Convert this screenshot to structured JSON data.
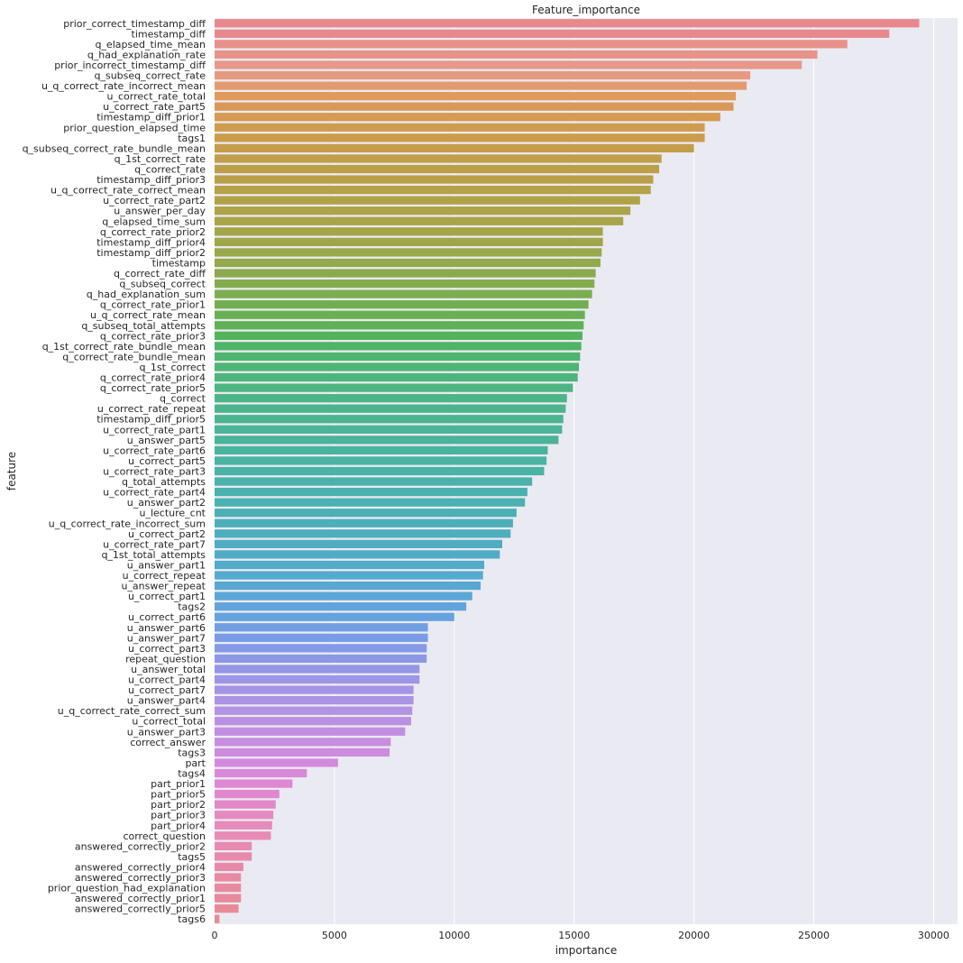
{
  "chart_data": {
    "type": "bar",
    "orientation": "horizontal",
    "title": "Feature_importance",
    "xlabel": "importance",
    "ylabel": "feature",
    "xlim": [
      0,
      31000
    ],
    "xticks": [
      0,
      5000,
      10000,
      15000,
      20000,
      25000,
      30000
    ],
    "grid": true,
    "background": "#eaeaf2",
    "categories": [
      "prior_correct_timestamp_diff",
      "timestamp_diff",
      "q_elapsed_time_mean",
      "q_had_explanation_rate",
      "prior_incorrect_timestamp_diff",
      "q_subseq_correct_rate",
      "u_q_correct_rate_incorrect_mean",
      "u_correct_rate_total",
      "u_correct_rate_part5",
      "timestamp_diff_prior1",
      "prior_question_elapsed_time",
      "tags1",
      "q_subseq_correct_rate_bundle_mean",
      "q_1st_correct_rate",
      "q_correct_rate",
      "timestamp_diff_prior3",
      "u_q_correct_rate_correct_mean",
      "u_correct_rate_part2",
      "u_answer_per_day",
      "q_elapsed_time_sum",
      "q_correct_rate_prior2",
      "timestamp_diff_prior4",
      "timestamp_diff_prior2",
      "timestamp",
      "q_correct_rate_diff",
      "q_subseq_correct",
      "q_had_explanation_sum",
      "q_correct_rate_prior1",
      "u_q_correct_rate_mean",
      "q_subseq_total_attempts",
      "q_correct_rate_prior3",
      "q_1st_correct_rate_bundle_mean",
      "q_correct_rate_bundle_mean",
      "q_1st_correct",
      "q_correct_rate_prior4",
      "q_correct_rate_prior5",
      "q_correct",
      "u_correct_rate_repeat",
      "timestamp_diff_prior5",
      "u_correct_rate_part1",
      "u_answer_part5",
      "u_correct_rate_part6",
      "u_correct_part5",
      "u_correct_rate_part3",
      "q_total_attempts",
      "u_correct_rate_part4",
      "u_answer_part2",
      "u_lecture_cnt",
      "u_q_correct_rate_incorrect_sum",
      "u_correct_part2",
      "u_correct_rate_part7",
      "q_1st_total_attempts",
      "u_answer_part1",
      "u_correct_repeat",
      "u_answer_repeat",
      "u_correct_part1",
      "tags2",
      "u_correct_part6",
      "u_answer_part6",
      "u_answer_part7",
      "u_correct_part3",
      "repeat_question",
      "u_answer_total",
      "u_correct_part4",
      "u_correct_part7",
      "u_answer_part4",
      "u_q_correct_rate_correct_sum",
      "u_correct_total",
      "u_answer_part3",
      "correct_answer",
      "tags3",
      "part",
      "tags4",
      "part_prior1",
      "part_prior5",
      "part_prior2",
      "part_prior3",
      "part_prior4",
      "correct_question",
      "answered_correctly_prior2",
      "tags5",
      "answered_correctly_prior4",
      "answered_correctly_prior3",
      "prior_question_had_explanation",
      "answered_correctly_prior1",
      "answered_correctly_prior5",
      "tags6"
    ],
    "values": [
      29400,
      28150,
      26400,
      25150,
      24500,
      22350,
      22200,
      21750,
      21650,
      21100,
      20450,
      20450,
      20000,
      18650,
      18550,
      18300,
      18200,
      17750,
      17350,
      17050,
      16200,
      16200,
      16150,
      16100,
      15900,
      15850,
      15750,
      15600,
      15450,
      15400,
      15350,
      15300,
      15250,
      15200,
      15150,
      14950,
      14700,
      14650,
      14550,
      14500,
      14350,
      13900,
      13850,
      13750,
      13250,
      13050,
      12950,
      12600,
      12450,
      12350,
      12000,
      11900,
      11250,
      11200,
      11100,
      10750,
      10500,
      10000,
      8900,
      8900,
      8850,
      8850,
      8550,
      8550,
      8300,
      8300,
      8250,
      8200,
      7950,
      7350,
      7300,
      5150,
      3850,
      3250,
      2700,
      2550,
      2450,
      2400,
      2350,
      1550,
      1550,
      1200,
      1100,
      1100,
      1100,
      1000,
      200
    ],
    "bar_colors": [
      "#e8888c",
      "#e8888c",
      "#e8918a",
      "#e8938a",
      "#e89888",
      "#e59a80",
      "#e49a70",
      "#e09a5c",
      "#d99858",
      "#d69a52",
      "#cf9b4e",
      "#cb9c4b",
      "#c49d4a",
      "#c19e49",
      "#be9f49",
      "#b9a048",
      "#b5a147",
      "#b1a247",
      "#ada347",
      "#a9a447",
      "#a4a549",
      "#9fa64a",
      "#99a84b",
      "#93a94c",
      "#8baa4d",
      "#84ac4e",
      "#7cad4f",
      "#72ae51",
      "#68b053",
      "#5eb155",
      "#52b35a",
      "#4db565",
      "#4db56e",
      "#4db575",
      "#4cb57c",
      "#4cb582",
      "#4bb587",
      "#4bb48c",
      "#4ab491",
      "#4ab496",
      "#4ab39a",
      "#4ab39e",
      "#4ab3a2",
      "#4ab2a6",
      "#4ab2aa",
      "#4ab2ae",
      "#4bb1b2",
      "#4bb0b6",
      "#4cafba",
      "#4daebe",
      "#4fadc2",
      "#50acc6",
      "#52abca",
      "#55aacf",
      "#58a8d3",
      "#5ca6d8",
      "#61a4dc",
      "#67a2e0",
      "#709fe4",
      "#799ce6",
      "#839ae6",
      "#8c98e6",
      "#9596e6",
      "#9d95e5",
      "#a594e5",
      "#ac93e4",
      "#b392e3",
      "#ba91e2",
      "#c08fe1",
      "#c78ee0",
      "#cd8cde",
      "#d48adc",
      "#da88d8",
      "#de87d3",
      "#e187cd",
      "#e388c7",
      "#e589c1",
      "#e689bb",
      "#e78ab6",
      "#e88ab1",
      "#e88aac",
      "#e88aa7",
      "#e88aa2",
      "#e88a9e",
      "#e88a9a",
      "#e88a96",
      "#e88a92"
    ]
  }
}
